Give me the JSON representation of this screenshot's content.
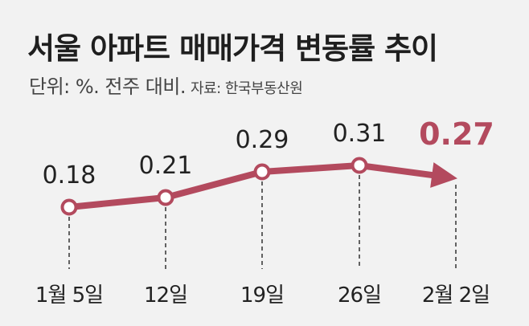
{
  "header": {
    "title": "서울 아파트 매매가격 변동률 추이",
    "unit": "단위: %. 전주 대비.",
    "source": "자료: 한국부동산원"
  },
  "colors": {
    "line": "#b34a5e",
    "marker_fill": "#ffffff",
    "guide": "#333333"
  },
  "chart_data": {
    "type": "line",
    "title": "서울 아파트 매매가격 변동률 추이",
    "ylabel": "",
    "xlabel": "",
    "categories": [
      "1월 5일",
      "12일",
      "19일",
      "26일",
      "2월 2일"
    ],
    "values": [
      0.18,
      0.21,
      0.29,
      0.31,
      0.27
    ],
    "value_labels": [
      "0.18",
      "0.21",
      "0.29",
      "0.31",
      "0.27"
    ],
    "last_point_marker": "arrow",
    "grid": false,
    "legend": "none"
  }
}
